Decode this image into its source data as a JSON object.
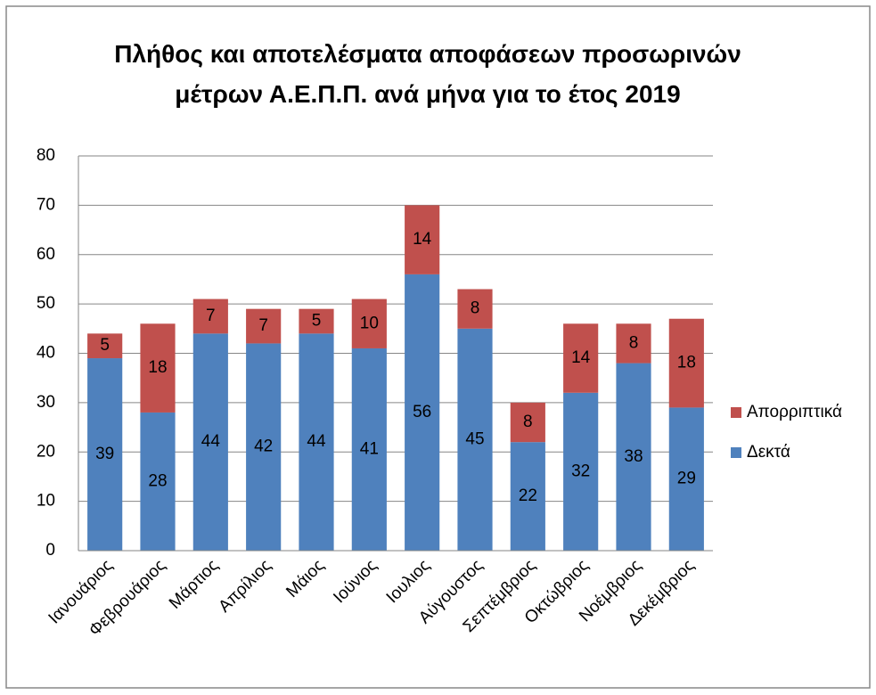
{
  "chart_data": {
    "type": "stacked_bar",
    "title": "Πλήθος και αποτελέσματα αποφάσεων προσωρινών μέτρων Α.Ε.Π.Π. ανά μήνα για το έτος 2019",
    "categories": [
      "Ιανουάριος",
      "Φεβρουάριος",
      "Μάρτιος",
      "Απρίλιος",
      "Μάιος",
      "Ιούνιος",
      "Ιουλιος",
      "Αύγουστος",
      "Σεπτέμβριος",
      "Οκτώβριος",
      "Νοέμβριος",
      "Δεκέμβριος"
    ],
    "series": [
      {
        "name": "Δεκτά",
        "color": "#4f81bd",
        "values": [
          39,
          28,
          44,
          42,
          44,
          41,
          56,
          45,
          22,
          32,
          38,
          29
        ]
      },
      {
        "name": "Απορριπτικά",
        "color": "#c0504d",
        "values": [
          5,
          18,
          7,
          7,
          5,
          10,
          14,
          8,
          8,
          14,
          8,
          18
        ]
      }
    ],
    "ylim": [
      0,
      80
    ],
    "yticks": [
      0,
      10,
      20,
      30,
      40,
      50,
      60,
      70,
      80
    ],
    "grid": true,
    "legend": "right"
  }
}
